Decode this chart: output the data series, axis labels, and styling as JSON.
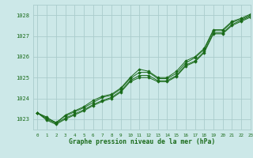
{
  "bg_color": "#cce8e8",
  "grid_color": "#aacccc",
  "line_color": "#1a6b1a",
  "marker_color": "#1a6b1a",
  "xlabel": "Graphe pression niveau de la mer (hPa)",
  "xlabel_color": "#1a6b1a",
  "xlim": [
    -0.5,
    23
  ],
  "ylim": [
    1022.5,
    1028.5
  ],
  "yticks": [
    1023,
    1024,
    1025,
    1026,
    1027,
    1028
  ],
  "xticks": [
    0,
    1,
    2,
    3,
    4,
    5,
    6,
    7,
    8,
    9,
    10,
    11,
    12,
    13,
    14,
    15,
    16,
    17,
    18,
    19,
    20,
    21,
    22,
    23
  ],
  "series": [
    [
      1023.3,
      1023.1,
      1022.8,
      1023.2,
      1023.4,
      1023.6,
      1023.9,
      1024.1,
      1024.2,
      1024.5,
      1025.0,
      1025.4,
      1025.3,
      1025.0,
      1025.0,
      1025.3,
      1025.8,
      1026.0,
      1026.4,
      1027.3,
      1027.3,
      1027.7,
      1027.85,
      1028.05
    ],
    [
      1023.3,
      1023.05,
      1022.85,
      1023.15,
      1023.35,
      1023.55,
      1023.8,
      1024.05,
      1024.15,
      1024.45,
      1024.95,
      1025.25,
      1025.25,
      1024.95,
      1024.95,
      1025.2,
      1025.7,
      1025.95,
      1026.35,
      1027.25,
      1027.25,
      1027.65,
      1027.8,
      1028.0
    ],
    [
      1023.3,
      1023.0,
      1022.8,
      1023.05,
      1023.25,
      1023.45,
      1023.7,
      1023.9,
      1024.05,
      1024.35,
      1024.85,
      1025.1,
      1025.1,
      1024.85,
      1024.85,
      1025.1,
      1025.6,
      1025.8,
      1026.25,
      1027.15,
      1027.15,
      1027.55,
      1027.75,
      1027.95
    ],
    [
      1023.3,
      1022.95,
      1022.75,
      1023.0,
      1023.2,
      1023.4,
      1023.65,
      1023.85,
      1024.0,
      1024.3,
      1024.8,
      1025.0,
      1025.0,
      1024.8,
      1024.8,
      1025.05,
      1025.55,
      1025.75,
      1026.2,
      1027.1,
      1027.1,
      1027.5,
      1027.7,
      1027.9
    ]
  ]
}
